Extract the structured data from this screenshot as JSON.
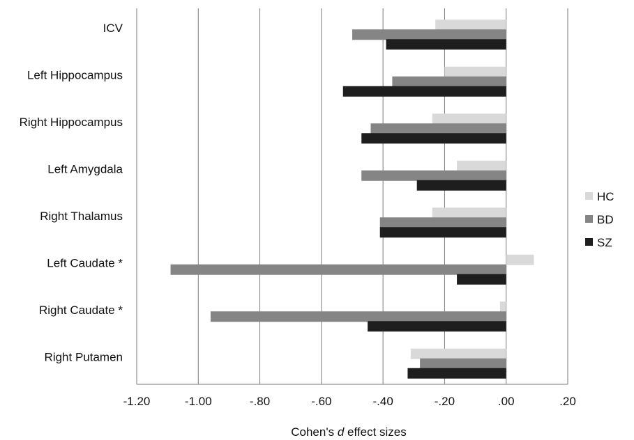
{
  "chart_data": {
    "type": "bar",
    "orientation": "horizontal",
    "categories": [
      "ICV",
      "Left Hippocampus",
      "Right Hippocampus",
      "Left Amygdala",
      "Right Thalamus",
      "Left Caudate *",
      "Right Caudate *",
      "Right Putamen"
    ],
    "series": [
      {
        "name": "HC",
        "color": "#d9d9d9",
        "values": [
          -0.23,
          -0.2,
          -0.24,
          -0.16,
          -0.24,
          0.09,
          -0.02,
          -0.31
        ]
      },
      {
        "name": "BD",
        "color": "#858585",
        "values": [
          -0.5,
          -0.37,
          -0.44,
          -0.47,
          -0.41,
          -1.09,
          -0.96,
          -0.28
        ]
      },
      {
        "name": "SZ",
        "color": "#1e1e1e",
        "values": [
          -0.39,
          -0.53,
          -0.47,
          -0.29,
          -0.41,
          -0.16,
          -0.45,
          -0.32
        ]
      }
    ],
    "xlim": [
      -1.2,
      0.2
    ],
    "xticks": [
      -1.2,
      -1.0,
      -0.8,
      -0.6,
      -0.4,
      -0.2,
      0.0,
      0.2
    ],
    "xtick_labels": [
      "-1.20",
      "-1.00",
      "-.80",
      "-.60",
      "-.40",
      "-.20",
      ".00",
      ".20"
    ],
    "xlabel_prefix": "Cohen's ",
    "xlabel_italic": "d",
    "xlabel_suffix": " effect sizes",
    "grid": "vertical",
    "legend_position": "right"
  }
}
